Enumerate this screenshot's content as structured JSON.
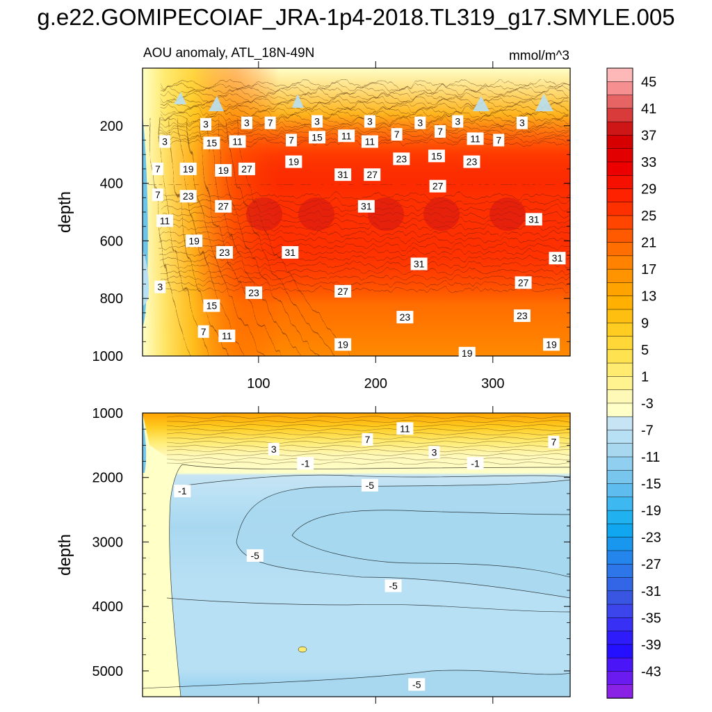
{
  "title": "g.e22.GOMIPECOIAF_JRA-1p4-2018.TL319_g17.SMYLE.005",
  "chart_data": [
    {
      "type": "heatmap",
      "panel": "upper",
      "subtitle_left": "AOU anomaly, ATL_18N-49N",
      "subtitle_right": "mmol/m^3",
      "ylabel": "depth",
      "xlabel": "",
      "xlim": [
        1,
        366
      ],
      "ylim": [
        1000,
        0
      ],
      "xticks": [
        100,
        200,
        300
      ],
      "yticks": [
        200,
        400,
        600,
        800,
        1000
      ],
      "grid": false,
      "contour_labels": [
        {
          "x": 55,
          "y": 195,
          "v": "3"
        },
        {
          "x": 90,
          "y": 190,
          "v": "3"
        },
        {
          "x": 110,
          "y": 190,
          "v": "7"
        },
        {
          "x": 150,
          "y": 185,
          "v": "3"
        },
        {
          "x": 195,
          "y": 185,
          "v": "3"
        },
        {
          "x": 238,
          "y": 190,
          "v": "3"
        },
        {
          "x": 270,
          "y": 185,
          "v": "3"
        },
        {
          "x": 325,
          "y": 190,
          "v": "3"
        },
        {
          "x": 20,
          "y": 255,
          "v": "3"
        },
        {
          "x": 60,
          "y": 260,
          "v": "15"
        },
        {
          "x": 82,
          "y": 255,
          "v": "11"
        },
        {
          "x": 128,
          "y": 250,
          "v": "7"
        },
        {
          "x": 150,
          "y": 240,
          "v": "15"
        },
        {
          "x": 175,
          "y": 235,
          "v": "11"
        },
        {
          "x": 195,
          "y": 255,
          "v": "11"
        },
        {
          "x": 218,
          "y": 230,
          "v": "7"
        },
        {
          "x": 255,
          "y": 220,
          "v": "7"
        },
        {
          "x": 285,
          "y": 245,
          "v": "11"
        },
        {
          "x": 305,
          "y": 250,
          "v": "7"
        },
        {
          "x": 14,
          "y": 350,
          "v": "7"
        },
        {
          "x": 40,
          "y": 350,
          "v": "19"
        },
        {
          "x": 70,
          "y": 355,
          "v": "19"
        },
        {
          "x": 90,
          "y": 350,
          "v": "27"
        },
        {
          "x": 130,
          "y": 325,
          "v": "19"
        },
        {
          "x": 172,
          "y": 370,
          "v": "31"
        },
        {
          "x": 197,
          "y": 370,
          "v": "27"
        },
        {
          "x": 222,
          "y": 315,
          "v": "23"
        },
        {
          "x": 252,
          "y": 305,
          "v": "15"
        },
        {
          "x": 282,
          "y": 325,
          "v": "23"
        },
        {
          "x": 14,
          "y": 440,
          "v": "7"
        },
        {
          "x": 40,
          "y": 445,
          "v": "23"
        },
        {
          "x": 70,
          "y": 480,
          "v": "27"
        },
        {
          "x": 192,
          "y": 480,
          "v": "31"
        },
        {
          "x": 253,
          "y": 410,
          "v": "27"
        },
        {
          "x": 20,
          "y": 530,
          "v": "11"
        },
        {
          "x": 45,
          "y": 600,
          "v": "19"
        },
        {
          "x": 71,
          "y": 640,
          "v": "23"
        },
        {
          "x": 127,
          "y": 640,
          "v": "31"
        },
        {
          "x": 237,
          "y": 680,
          "v": "31"
        },
        {
          "x": 335,
          "y": 525,
          "v": "31"
        },
        {
          "x": 355,
          "y": 660,
          "v": "31"
        },
        {
          "x": 16,
          "y": 760,
          "v": "3"
        },
        {
          "x": 60,
          "y": 825,
          "v": "15"
        },
        {
          "x": 96,
          "y": 780,
          "v": "23"
        },
        {
          "x": 172,
          "y": 775,
          "v": "27"
        },
        {
          "x": 326,
          "y": 745,
          "v": "27"
        },
        {
          "x": 53,
          "y": 915,
          "v": "7"
        },
        {
          "x": 73,
          "y": 930,
          "v": "11"
        },
        {
          "x": 225,
          "y": 865,
          "v": "23"
        },
        {
          "x": 325,
          "y": 860,
          "v": "23"
        },
        {
          "x": 172,
          "y": 960,
          "v": "19"
        },
        {
          "x": 278,
          "y": 990,
          "v": "19"
        },
        {
          "x": 350,
          "y": 960,
          "v": "19"
        }
      ]
    },
    {
      "type": "heatmap",
      "panel": "lower",
      "ylabel": "depth",
      "xlabel": "",
      "xlim": [
        1,
        366
      ],
      "ylim": [
        1000,
        5400
      ],
      "xticks": [],
      "yticks": [
        1000,
        2000,
        3000,
        4000,
        5000
      ],
      "grid": false,
      "contour_labels": [
        {
          "x": 225,
          "y": 1240,
          "v": "11"
        },
        {
          "x": 193,
          "y": 1410,
          "v": "7"
        },
        {
          "x": 352,
          "y": 1450,
          "v": "7"
        },
        {
          "x": 113,
          "y": 1560,
          "v": "3"
        },
        {
          "x": 250,
          "y": 1610,
          "v": "3"
        },
        {
          "x": 140,
          "y": 1780,
          "v": "-1"
        },
        {
          "x": 285,
          "y": 1780,
          "v": "-1"
        },
        {
          "x": 35,
          "y": 2210,
          "v": "-1"
        },
        {
          "x": 195,
          "y": 2120,
          "v": "-5"
        },
        {
          "x": 97,
          "y": 3210,
          "v": "-5"
        },
        {
          "x": 215,
          "y": 3680,
          "v": "-5"
        },
        {
          "x": 235,
          "y": 5210,
          "v": "-5"
        }
      ]
    }
  ],
  "colorbar": {
    "labels": [
      "45",
      "41",
      "37",
      "33",
      "29",
      "25",
      "21",
      "17",
      "13",
      "9",
      "5",
      "1",
      "-3",
      "-7",
      "-11",
      "-15",
      "-19",
      "-23",
      "-27",
      "-31",
      "-35",
      "-39",
      "-43"
    ],
    "colors_top_to_bottom": [
      "#ffb8b8",
      "#f69090",
      "#e66464",
      "#d93a3a",
      "#cf1616",
      "#d60000",
      "#e20000",
      "#ec0000",
      "#f61000",
      "#ff2200",
      "#ff3000",
      "#ff4500",
      "#ff5a00",
      "#ff6e00",
      "#ff8200",
      "#ff9400",
      "#ffa300",
      "#ffb000",
      "#ffbf10",
      "#ffcc22",
      "#ffd837",
      "#ffe250",
      "#ffeb70",
      "#fff390",
      "#fff9b8",
      "#ffffc8",
      "#c6e4f4",
      "#b8e0f4",
      "#a8d8f0",
      "#90cff0",
      "#78c6ee",
      "#5ebdee",
      "#3eb8f0",
      "#20b2f0",
      "#10a6f0",
      "#1996ee",
      "#2486ec",
      "#2c76ea",
      "#3366e6",
      "#3956e2",
      "#3c44ec",
      "#3830f4",
      "#2e1cfa",
      "#2410ff",
      "#4a16f8",
      "#6a1cf0",
      "#8a22e6"
    ]
  }
}
